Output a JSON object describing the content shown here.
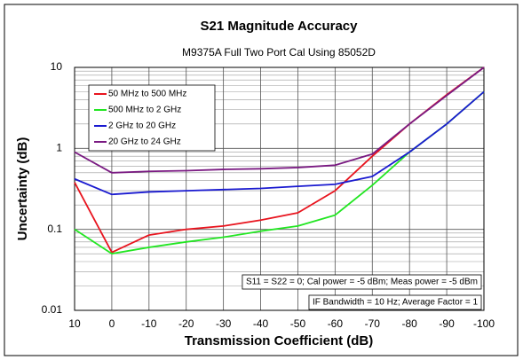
{
  "chart_data": {
    "type": "line",
    "title": "S21 Magnitude Accuracy",
    "subtitle": "M9375A Full Two Port Cal Using 85052D",
    "x_label": "Transmission Coefficient (dB)",
    "y_label": "Uncertainty (dB)",
    "x": [
      10,
      0,
      -10,
      -20,
      -30,
      -40,
      -50,
      -60,
      -70,
      -80,
      -90,
      -100
    ],
    "series": [
      {
        "name": "50 MHz to 500 MHz",
        "color": "#e8141e",
        "values": [
          0.38,
          0.052,
          0.085,
          0.1,
          0.11,
          0.13,
          0.16,
          0.3,
          0.8,
          2,
          4.6,
          10
        ]
      },
      {
        "name": "500 MHz to 2 GHz",
        "color": "#22e622",
        "values": [
          0.1,
          0.05,
          0.06,
          0.07,
          0.08,
          0.095,
          0.11,
          0.15,
          0.35,
          0.9,
          2,
          5
        ]
      },
      {
        "name": "2 GHz to 20 GHz",
        "color": "#1a1ad0",
        "values": [
          0.42,
          0.27,
          0.29,
          0.3,
          0.31,
          0.32,
          0.34,
          0.36,
          0.45,
          0.9,
          2,
          5
        ]
      },
      {
        "name": "20 GHz to 24 GHz",
        "color": "#7a1a82",
        "values": [
          0.9,
          0.5,
          0.52,
          0.53,
          0.55,
          0.56,
          0.58,
          0.62,
          0.85,
          2,
          4.5,
          10
        ]
      }
    ],
    "xlim": [
      10,
      -100
    ],
    "xticks": [
      10,
      0,
      -10,
      -20,
      -30,
      -40,
      -50,
      -60,
      -70,
      -80,
      -90,
      -100
    ],
    "ylim": [
      0.01,
      10
    ],
    "yticks": [
      0.01,
      0.1,
      1,
      10
    ],
    "y_scale": "log",
    "grid": true,
    "legend_position": "upper left",
    "annotations": [
      "S11 = S22 = 0; Cal power = -5 dBm; Meas power = -5 dBm",
      "IF Bandwidth = 10 Hz; Average Factor = 1"
    ]
  }
}
